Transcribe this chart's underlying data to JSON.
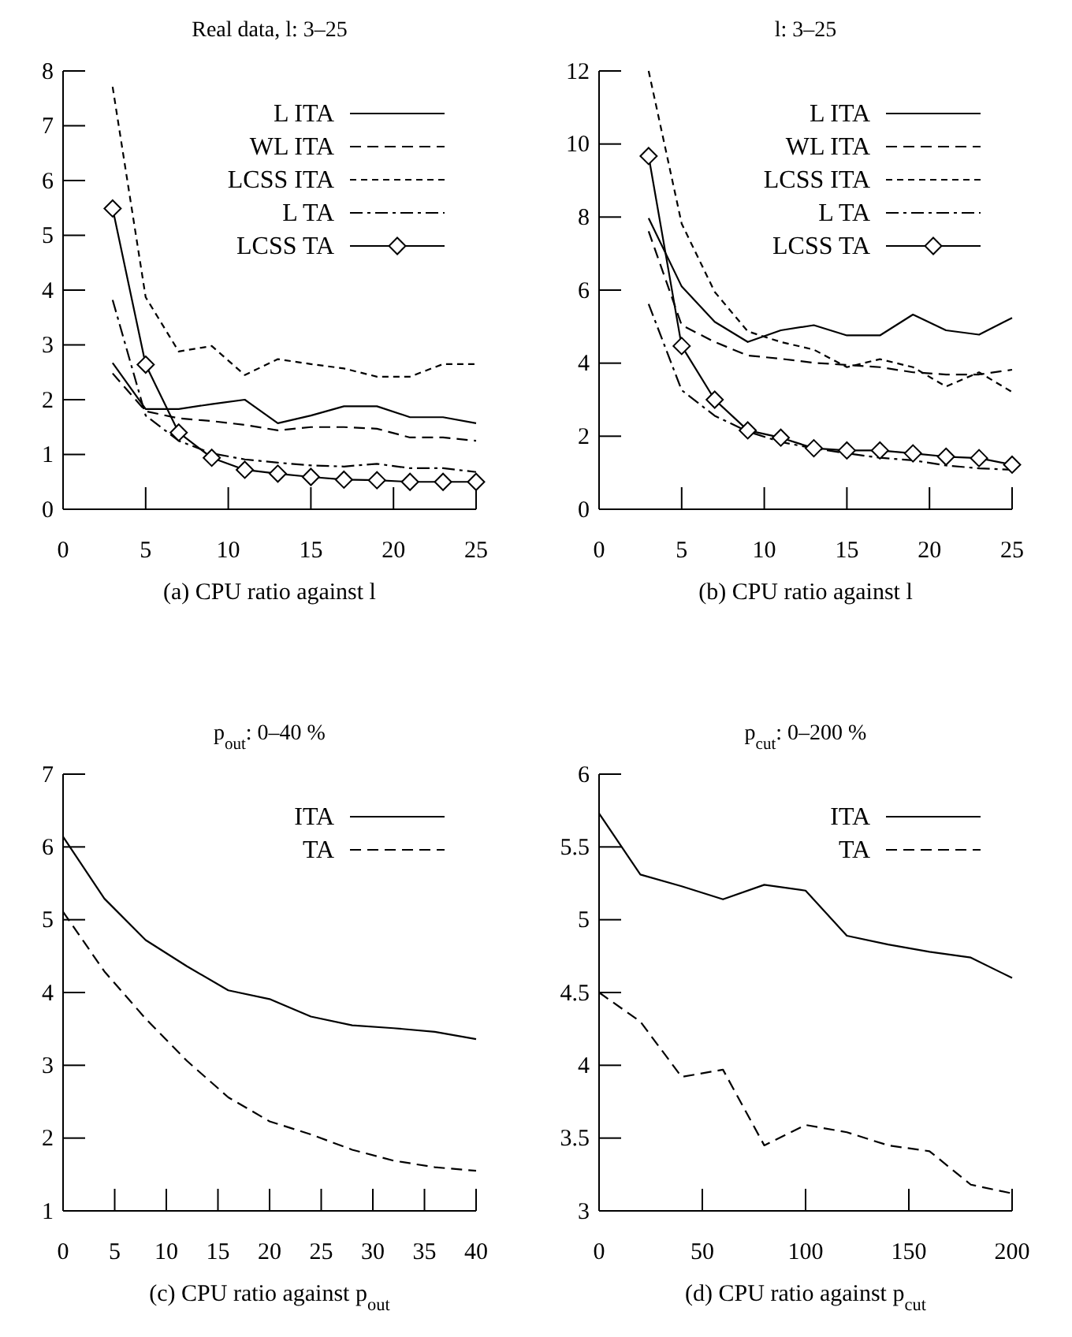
{
  "chart_data": [
    {
      "type": "line",
      "title": "Real data, l: 3–25",
      "xlabel": "(a) CPU ratio against l",
      "x": [
        3,
        5,
        7,
        9,
        11,
        13,
        15,
        17,
        19,
        21,
        23,
        25
      ],
      "xlim": [
        0,
        25
      ],
      "xticks": [
        0,
        5,
        10,
        15,
        20,
        25
      ],
      "ylim": [
        0,
        8
      ],
      "yticks": [
        0,
        1,
        2,
        3,
        4,
        5,
        6,
        7,
        8
      ],
      "legend": "top right",
      "grid": false,
      "series": [
        {
          "name": "L ITA",
          "color": "#000000",
          "line_style": "solid",
          "values": [
            2.67,
            1.83,
            1.83,
            1.92,
            2.0,
            1.57,
            1.71,
            1.88,
            1.88,
            1.68,
            1.68,
            1.57
          ]
        },
        {
          "name": "WL ITA",
          "color": "#000000",
          "line_style": "dashed",
          "values": [
            2.48,
            1.79,
            1.66,
            1.61,
            1.54,
            1.44,
            1.5,
            1.5,
            1.47,
            1.31,
            1.31,
            1.25
          ]
        },
        {
          "name": "LCSS ITA",
          "color": "#000000",
          "line_style": "dotted",
          "values": [
            7.71,
            3.87,
            2.88,
            2.98,
            2.45,
            2.74,
            2.65,
            2.57,
            2.42,
            2.42,
            2.65,
            2.65
          ]
        },
        {
          "name": "L TA",
          "color": "#000000",
          "line_style": "dashdot",
          "values": [
            3.82,
            1.71,
            1.25,
            1.02,
            0.91,
            0.85,
            0.8,
            0.78,
            0.83,
            0.75,
            0.75,
            0.68
          ]
        },
        {
          "name": "LCSS TA",
          "color": "#000000",
          "line_style": "solid",
          "marker": "diamond",
          "values": [
            5.49,
            2.64,
            1.4,
            0.94,
            0.72,
            0.65,
            0.59,
            0.54,
            0.53,
            0.5,
            0.5,
            0.5
          ]
        }
      ]
    },
    {
      "type": "line",
      "title": "l: 3–25",
      "xlabel": "(b) CPU ratio against l",
      "x": [
        3,
        5,
        7,
        9,
        11,
        13,
        15,
        17,
        19,
        21,
        23,
        25
      ],
      "xlim": [
        0,
        25
      ],
      "xticks": [
        0,
        5,
        10,
        15,
        20,
        25
      ],
      "ylim": [
        0,
        12
      ],
      "yticks": [
        0,
        2,
        4,
        6,
        8,
        10,
        12
      ],
      "legend": "top right",
      "grid": false,
      "series": [
        {
          "name": "L ITA",
          "color": "#000000",
          "line_style": "solid",
          "values": [
            7.97,
            6.1,
            5.13,
            4.58,
            4.9,
            5.04,
            4.76,
            4.76,
            5.33,
            4.9,
            4.78,
            5.24
          ]
        },
        {
          "name": "WL ITA",
          "color": "#000000",
          "line_style": "dashed",
          "values": [
            7.61,
            5.04,
            4.58,
            4.21,
            4.12,
            4.01,
            3.95,
            3.89,
            3.75,
            3.69,
            3.69,
            3.82
          ]
        },
        {
          "name": "LCSS ITA",
          "color": "#000000",
          "line_style": "dotted",
          "values": [
            12.0,
            7.82,
            5.95,
            4.87,
            4.58,
            4.37,
            3.89,
            4.11,
            3.89,
            3.36,
            3.75,
            3.21
          ]
        },
        {
          "name": "L TA",
          "color": "#000000",
          "line_style": "dashdot",
          "values": [
            5.62,
            3.26,
            2.56,
            2.13,
            1.84,
            1.67,
            1.53,
            1.41,
            1.34,
            1.2,
            1.12,
            1.08
          ]
        },
        {
          "name": "LCSS TA",
          "color": "#000000",
          "line_style": "solid",
          "marker": "diamond",
          "values": [
            9.67,
            4.47,
            3.0,
            2.16,
            1.96,
            1.67,
            1.61,
            1.61,
            1.53,
            1.44,
            1.4,
            1.22
          ]
        }
      ]
    },
    {
      "type": "line",
      "title": "p$_{out}$: 0–40 %",
      "xlabel": "(c) CPU ratio against p$_{out}$",
      "x": [
        0,
        4,
        8,
        12,
        16,
        20,
        24,
        28,
        32,
        36,
        40
      ],
      "xlim": [
        0,
        40
      ],
      "xticks": [
        0,
        5,
        10,
        15,
        20,
        25,
        30,
        35,
        40
      ],
      "ylim": [
        1,
        7
      ],
      "yticks": [
        1,
        2,
        3,
        4,
        5,
        6,
        7
      ],
      "legend": "top right",
      "grid": false,
      "series": [
        {
          "name": "ITA",
          "color": "#000000",
          "line_style": "solid",
          "values": [
            6.14,
            5.29,
            4.72,
            4.36,
            4.03,
            3.91,
            3.67,
            3.55,
            3.51,
            3.46,
            3.36
          ]
        },
        {
          "name": "TA",
          "color": "#000000",
          "line_style": "dashed",
          "values": [
            5.11,
            4.29,
            3.64,
            3.06,
            2.56,
            2.23,
            2.05,
            1.84,
            1.69,
            1.6,
            1.55
          ]
        }
      ]
    },
    {
      "type": "line",
      "title": "p$_{cut}$: 0–200 %",
      "xlabel": "(d) CPU ratio against p$_{cut}$",
      "x": [
        0,
        20,
        40,
        60,
        80,
        100,
        120,
        140,
        160,
        180,
        200
      ],
      "xlim": [
        0,
        200
      ],
      "xticks": [
        0,
        50,
        100,
        150,
        200
      ],
      "ylim": [
        3,
        6
      ],
      "yticks": [
        3,
        {
          "value": 3.5,
          "label": "3.5"
        },
        4,
        {
          "value": 4.5,
          "label": "4.5"
        },
        5,
        {
          "value": 5.5,
          "label": "5.5"
        },
        6
      ],
      "legend": "top right",
      "grid": false,
      "series": [
        {
          "name": "ITA",
          "color": "#000000",
          "line_style": "solid",
          "values": [
            5.73,
            5.31,
            5.23,
            5.14,
            5.24,
            5.2,
            4.89,
            4.83,
            4.78,
            4.74,
            4.6
          ]
        },
        {
          "name": "TA",
          "color": "#000000",
          "line_style": "dashed",
          "values": [
            4.5,
            4.3,
            3.92,
            3.97,
            3.45,
            3.59,
            3.54,
            3.45,
            3.41,
            3.18,
            3.12
          ]
        }
      ]
    }
  ]
}
